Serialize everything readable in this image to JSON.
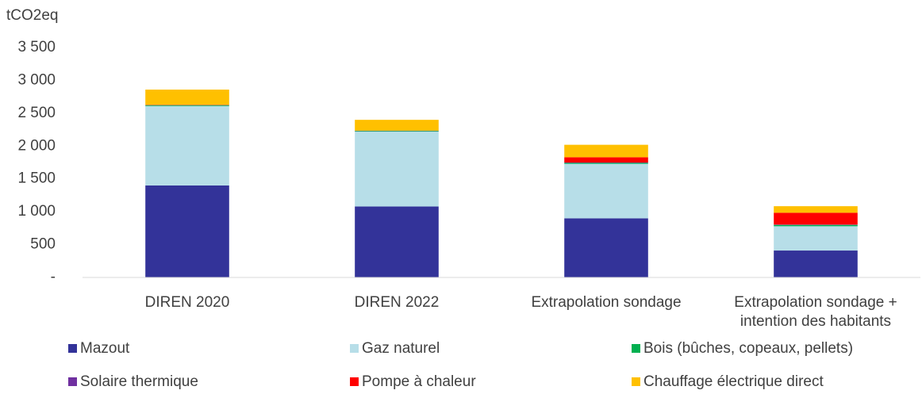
{
  "chart_data": {
    "type": "stacked_bar",
    "y_label": "tCO2eq",
    "categories": [
      "DIREN 2020",
      "DIREN 2022",
      "Extrapolation sondage",
      "Extrapolation sondage + intention des habitants"
    ],
    "series": [
      {
        "name": "Mazout",
        "color": "#333399",
        "values": [
          1400,
          1080,
          900,
          410
        ]
      },
      {
        "name": "Gaz naturel",
        "color": "#b7dee8",
        "values": [
          1210,
          1140,
          830,
          370
        ]
      },
      {
        "name": "Bois (bûches, copeaux, pellets)",
        "color": "#00b050",
        "values": [
          10,
          10,
          15,
          20
        ]
      },
      {
        "name": "Solaire thermique",
        "color": "#7030a0",
        "values": [
          5,
          5,
          5,
          5
        ]
      },
      {
        "name": "Pompe à chaleur",
        "color": "#ff0000",
        "values": [
          0,
          0,
          80,
          180
        ]
      },
      {
        "name": "Chauffage électrique direct",
        "color": "#ffc000",
        "values": [
          235,
          165,
          190,
          100
        ]
      }
    ],
    "ylim": [
      0,
      3500
    ],
    "yticks": [
      {
        "value": 0,
        "label": "-"
      },
      500,
      {
        "value": 1000,
        "label": "1 000"
      },
      {
        "value": 1500,
        "label": "1 500"
      },
      {
        "value": 2000,
        "label": "2 000"
      },
      {
        "value": 2500,
        "label": "2 500"
      },
      {
        "value": 3000,
        "label": "3 000"
      },
      {
        "value": 3500,
        "label": "3 500"
      }
    ],
    "grid": false
  }
}
